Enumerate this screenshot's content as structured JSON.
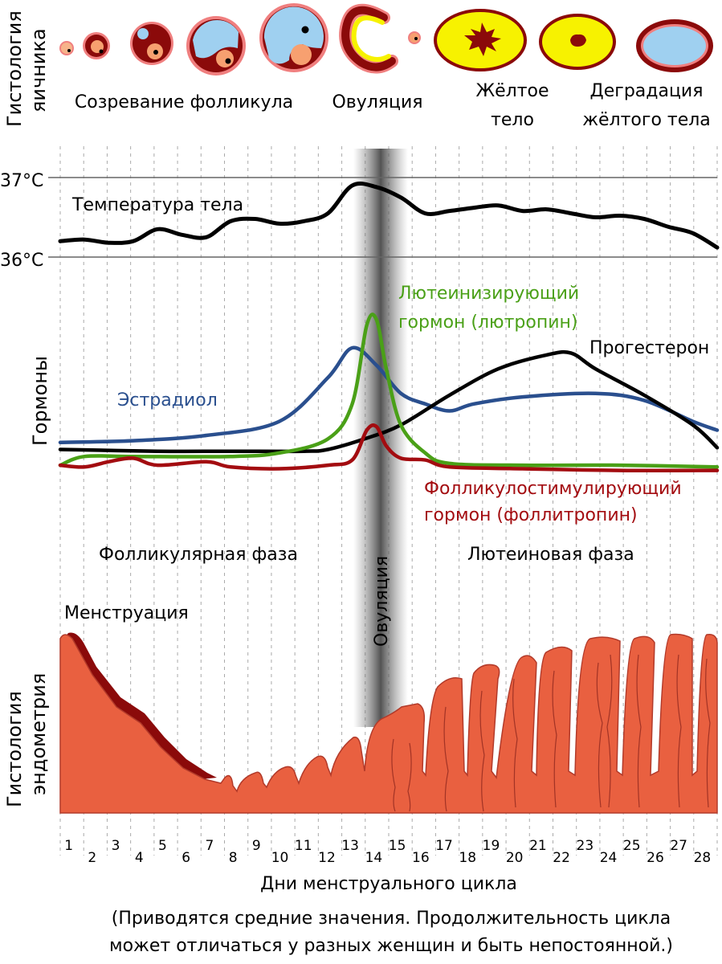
{
  "ovary": {
    "side_label_1": "Гистология",
    "side_label_2": "яичника",
    "stage_maturation": "Созревание фолликула",
    "stage_ovulation": "Овуляция",
    "stage_corpus_1": "Жёлтое",
    "stage_corpus_2": "тело",
    "stage_degradation_1": "Деградация",
    "stage_degradation_2": "жёлтого тела"
  },
  "temperature": {
    "tick_high": "37°C",
    "tick_low": "36°C",
    "label": "Температура тела",
    "ylim": [
      36,
      37
    ],
    "values": [
      36.2,
      36.22,
      36.18,
      36.2,
      36.35,
      36.28,
      36.25,
      36.45,
      36.48,
      36.42,
      36.45,
      36.55,
      36.9,
      36.88,
      36.75,
      36.55,
      36.58,
      36.62,
      36.65,
      36.58,
      36.6,
      36.55,
      36.5,
      36.52,
      36.48,
      36.38,
      36.3,
      36.12
    ]
  },
  "hormones": {
    "side_label": "Гормоны",
    "estradiol_label": "Эстрадиол",
    "lh_label_1": "Лютеинизирующий",
    "lh_label_2": "гормон (лютропин)",
    "progesterone_label": "Прогестерон",
    "fsh_label_1": "Фолликулостимулирующий",
    "fsh_label_2": "гормон (фоллитропин)",
    "series": [
      {
        "name": "Эстрадиол",
        "color": "#2a4f8e",
        "points": [
          [
            1,
            0.18
          ],
          [
            4,
            0.19
          ],
          [
            7,
            0.22
          ],
          [
            10,
            0.3
          ],
          [
            12,
            0.55
          ],
          [
            13,
            0.72
          ],
          [
            14,
            0.62
          ],
          [
            15,
            0.46
          ],
          [
            16,
            0.4
          ],
          [
            17,
            0.36
          ],
          [
            18,
            0.4
          ],
          [
            20,
            0.44
          ],
          [
            23,
            0.46
          ],
          [
            25,
            0.42
          ],
          [
            27,
            0.3
          ],
          [
            28,
            0.25
          ]
        ]
      },
      {
        "name": "Лютеинизирующий гормон (лютропин)",
        "color": "#4aa017",
        "points": [
          [
            1,
            0.05
          ],
          [
            2,
            0.1
          ],
          [
            4,
            0.1
          ],
          [
            8,
            0.1
          ],
          [
            10,
            0.12
          ],
          [
            12,
            0.2
          ],
          [
            13,
            0.4
          ],
          [
            13.6,
            0.85
          ],
          [
            14,
            0.88
          ],
          [
            14.4,
            0.6
          ],
          [
            15,
            0.28
          ],
          [
            16,
            0.12
          ],
          [
            17,
            0.06
          ],
          [
            20,
            0.05
          ],
          [
            24,
            0.05
          ],
          [
            28,
            0.04
          ]
        ]
      },
      {
        "name": "Прогестерон",
        "color": "#000000",
        "points": [
          [
            1,
            0.14
          ],
          [
            5,
            0.13
          ],
          [
            8,
            0.13
          ],
          [
            11,
            0.13
          ],
          [
            12,
            0.14
          ],
          [
            13.5,
            0.2
          ],
          [
            15,
            0.28
          ],
          [
            17,
            0.45
          ],
          [
            19,
            0.6
          ],
          [
            21,
            0.68
          ],
          [
            22,
            0.69
          ],
          [
            23,
            0.6
          ],
          [
            25,
            0.45
          ],
          [
            27,
            0.28
          ],
          [
            28,
            0.15
          ]
        ]
      },
      {
        "name": "Фолликулостимулирующий гормон (фоллитропин)",
        "color": "#a30c10",
        "points": [
          [
            1,
            0.05
          ],
          [
            2,
            0.04
          ],
          [
            3,
            0.07
          ],
          [
            4,
            0.09
          ],
          [
            5,
            0.05
          ],
          [
            7,
            0.07
          ],
          [
            8,
            0.04
          ],
          [
            10,
            0.03
          ],
          [
            12,
            0.05
          ],
          [
            13,
            0.08
          ],
          [
            13.6,
            0.25
          ],
          [
            14,
            0.27
          ],
          [
            14.4,
            0.16
          ],
          [
            15,
            0.09
          ],
          [
            16,
            0.08
          ],
          [
            17,
            0.04
          ],
          [
            20,
            0.03
          ],
          [
            24,
            0.02
          ],
          [
            28,
            0.02
          ]
        ]
      }
    ]
  },
  "phases": {
    "follicular": "Фолликулярная фаза",
    "ovulation": "Овуляция",
    "luteal": "Лютеиновая фаза"
  },
  "endometrium": {
    "side_label_1": "Гистология",
    "side_label_2": "эндометрия",
    "menstruation": "Менструация",
    "tissue_color": "#e96040",
    "dark_color": "#8b0a0a"
  },
  "xaxis": {
    "days": [
      "1",
      "2",
      "3",
      "4",
      "5",
      "6",
      "7",
      "8",
      "9",
      "10",
      "11",
      "12",
      "13",
      "14",
      "15",
      "16",
      "17",
      "18",
      "19",
      "20",
      "21",
      "22",
      "23",
      "24",
      "25",
      "26",
      "27",
      "28"
    ],
    "label": "Дни менструального цикла"
  },
  "footnote": {
    "line1": "(Приводятся средние значения. Продолжительность цикла",
    "line2": "может отличаться у разных женщин и быть непостоянной.)"
  },
  "colors": {
    "ovulation_band": "#555555",
    "follicle_fluid": "#9fd0f0",
    "corpus_yellow": "#f7f200",
    "dark_red": "#8b0a0a",
    "pink": "#f07f7f"
  }
}
